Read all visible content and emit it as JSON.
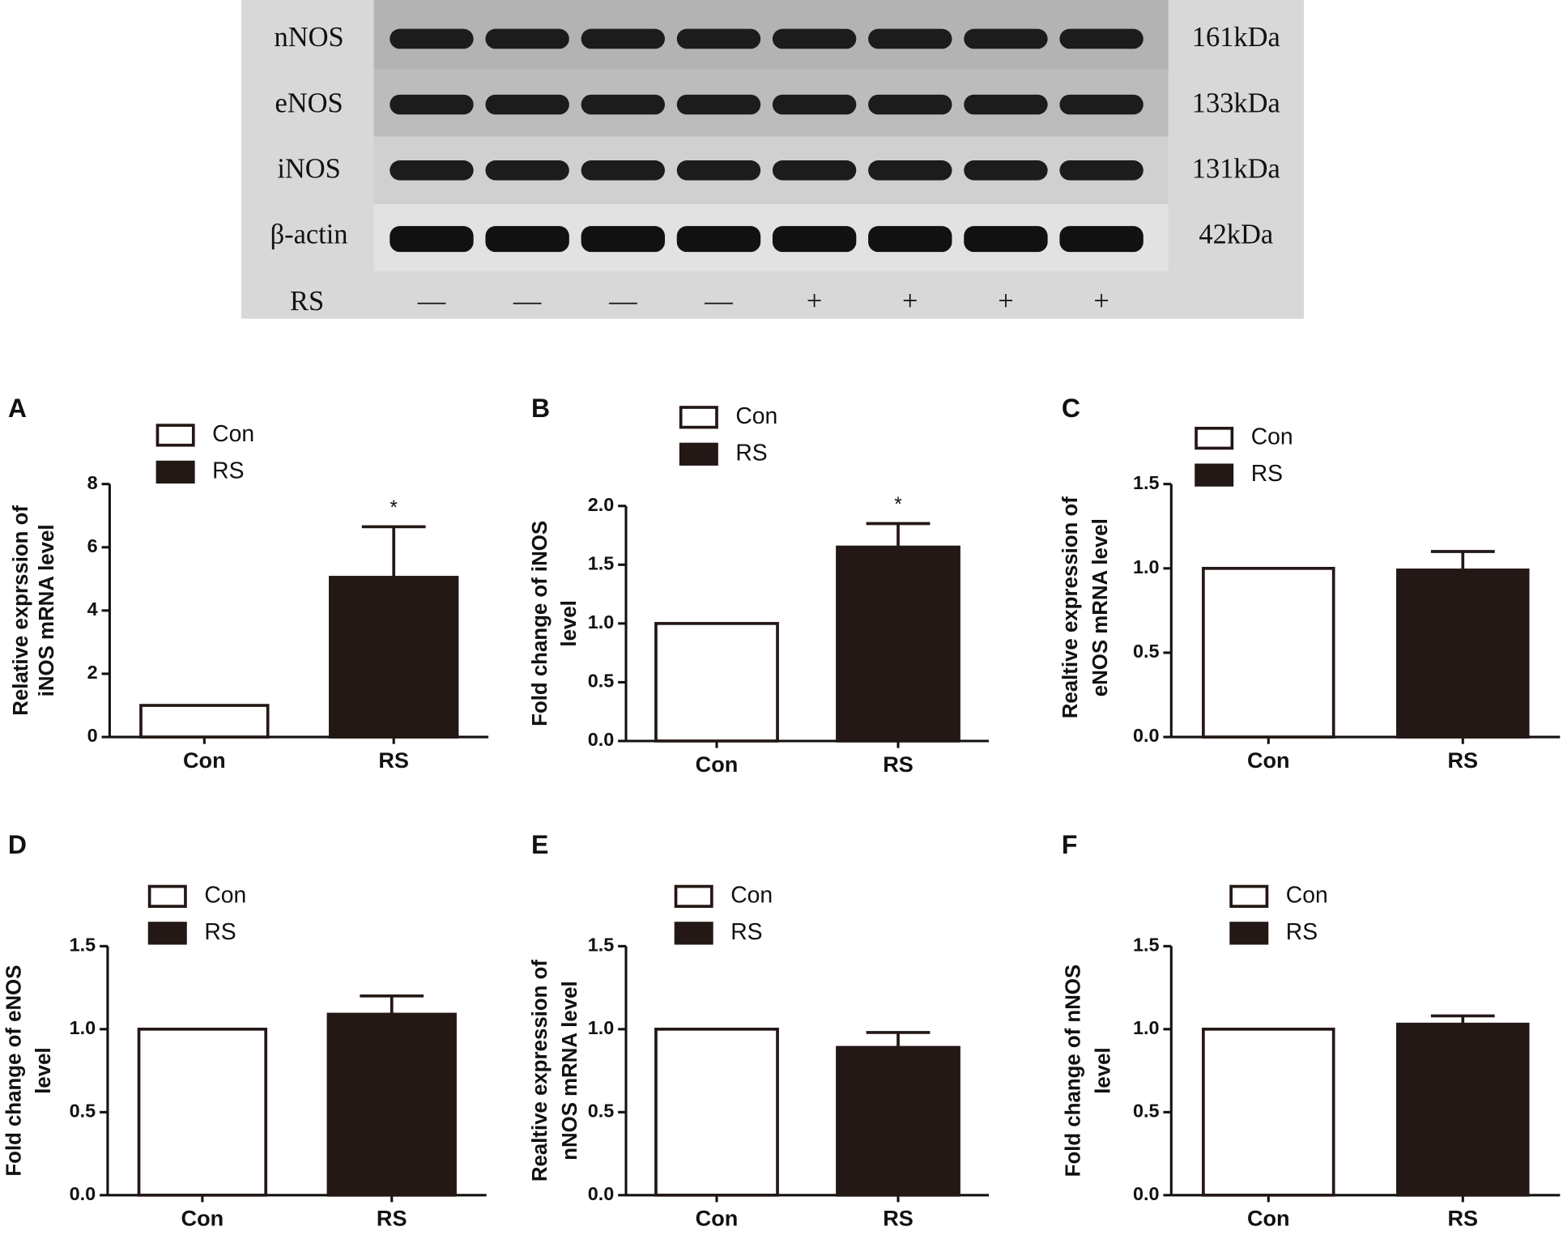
{
  "blot": {
    "proteins": [
      "nNOS",
      "eNOS",
      "iNOS",
      "β-actin"
    ],
    "sizes": [
      "161kDa",
      "133kDa",
      "131kDa",
      "42kDa"
    ],
    "treatment_label": "RS",
    "lanes": [
      "—",
      "—",
      "—",
      "—",
      "+",
      "+",
      "+",
      "+"
    ]
  },
  "chart_data": [
    {
      "type": "bar",
      "panel": "A",
      "ylabel": [
        "Relative exprssion of",
        "iNOS mRNA level"
      ],
      "categories": [
        "Con",
        "RS"
      ],
      "legend": [
        "Con",
        "RS"
      ],
      "colors": [
        "#ffffff",
        "#231815"
      ],
      "values": [
        1,
        5.05
      ],
      "errors": [
        null,
        1.6
      ],
      "annotation": "*",
      "ylim": [
        0,
        8
      ],
      "yticks": [
        0,
        2,
        4,
        6,
        8
      ]
    },
    {
      "type": "bar",
      "panel": "B",
      "ylabel": [
        "Fold change of iNOS",
        "level"
      ],
      "categories": [
        "Con",
        "RS"
      ],
      "legend": [
        "Con",
        "RS"
      ],
      "colors": [
        "#ffffff",
        "#231815"
      ],
      "values": [
        1,
        1.65
      ],
      "errors": [
        null,
        0.2
      ],
      "annotation": "*",
      "ylim": [
        0,
        2
      ],
      "yticks": [
        {
          "value": 0,
          "label": "0.0"
        },
        {
          "value": 0.5,
          "label": "0.5"
        },
        {
          "value": 1,
          "label": "1.0"
        },
        {
          "value": 1.5,
          "label": "1.5"
        },
        {
          "value": 2,
          "label": "2.0"
        }
      ]
    },
    {
      "type": "bar",
      "panel": "C",
      "ylabel": [
        "Realtive expression of",
        "eNOS mRNA level"
      ],
      "categories": [
        "Con",
        "RS"
      ],
      "legend": [
        "Con",
        "RS"
      ],
      "colors": [
        "#ffffff",
        "#231815"
      ],
      "values": [
        1,
        0.99
      ],
      "errors": [
        null,
        0.11
      ],
      "ylim": [
        0,
        1.5
      ],
      "yticks": [
        {
          "value": 0,
          "label": "0.0"
        },
        {
          "value": 0.5,
          "label": "0.5"
        },
        {
          "value": 1,
          "label": "1.0"
        },
        {
          "value": 1.5,
          "label": "1.5"
        }
      ]
    },
    {
      "type": "bar",
      "panel": "D",
      "ylabel": [
        "Fold change of eNOS",
        "level"
      ],
      "categories": [
        "Con",
        "RS"
      ],
      "legend": [
        "Con",
        "RS"
      ],
      "colors": [
        "#ffffff",
        "#231815"
      ],
      "values": [
        1,
        1.09
      ],
      "errors": [
        null,
        0.11
      ],
      "ylim": [
        0,
        1.5
      ],
      "yticks": [
        {
          "value": 0,
          "label": "0.0"
        },
        {
          "value": 0.5,
          "label": "0.5"
        },
        {
          "value": 1,
          "label": "1.0"
        },
        {
          "value": 1.5,
          "label": "1.5"
        }
      ]
    },
    {
      "type": "bar",
      "panel": "E",
      "ylabel": [
        "Realtive expression  of",
        "nNOS mRNA level"
      ],
      "categories": [
        "Con",
        "RS"
      ],
      "legend": [
        "Con",
        "RS"
      ],
      "colors": [
        "#ffffff",
        "#231815"
      ],
      "values": [
        1,
        0.89
      ],
      "errors": [
        null,
        0.09
      ],
      "ylim": [
        0,
        1.5
      ],
      "yticks": [
        {
          "value": 0,
          "label": "0.0"
        },
        {
          "value": 0.5,
          "label": "0.5"
        },
        {
          "value": 1,
          "label": "1.0"
        },
        {
          "value": 1.5,
          "label": "1.5"
        }
      ]
    },
    {
      "type": "bar",
      "panel": "F",
      "ylabel": [
        "Fold change of nNOS",
        "level"
      ],
      "categories": [
        "Con",
        "RS"
      ],
      "legend": [
        "Con",
        "RS"
      ],
      "colors": [
        "#ffffff",
        "#231815"
      ],
      "values": [
        1,
        1.03
      ],
      "errors": [
        null,
        0.05
      ],
      "ylim": [
        0,
        1.5
      ],
      "yticks": [
        {
          "value": 0,
          "label": "0.0"
        },
        {
          "value": 0.5,
          "label": "0.5"
        },
        {
          "value": 1,
          "label": "1.0"
        },
        {
          "value": 1.5,
          "label": "1.5"
        }
      ]
    }
  ]
}
